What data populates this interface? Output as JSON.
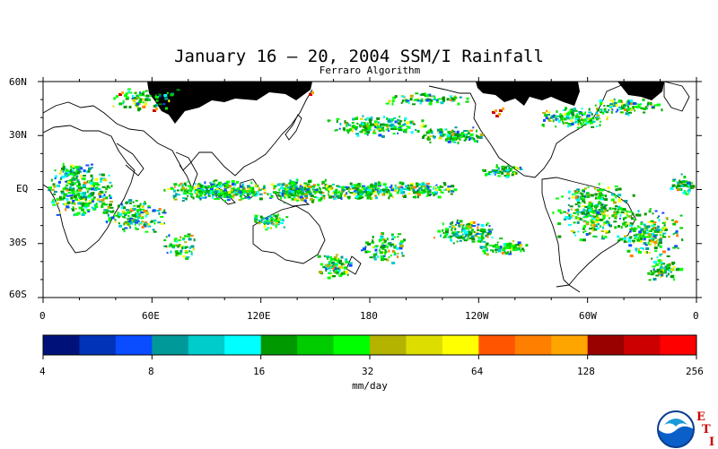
{
  "title": "January 16 – 20, 2004 SSM/I Rainfall",
  "subtitle": "Ferraro Algorithm",
  "lat_labels": [
    "60N",
    "30N",
    "EQ",
    "30S",
    "60S"
  ],
  "lon_labels": [
    "0",
    "60E",
    "120E",
    "180",
    "120W",
    "60W",
    "0"
  ],
  "colorbar": {
    "colors": [
      "#00127a",
      "#0033b8",
      "#0a4cff",
      "#00999a",
      "#00cccc",
      "#00ffff",
      "#009900",
      "#00cc00",
      "#00ff00",
      "#b3b300",
      "#dddd00",
      "#ffff00",
      "#ff5500",
      "#ff7f00",
      "#ffa500",
      "#990000",
      "#cc0000",
      "#ff0000"
    ],
    "tick_labels": [
      "4",
      "8",
      "16",
      "32",
      "64",
      "128",
      "256"
    ],
    "units": "mm/day"
  },
  "logo": {
    "name": "NOAA",
    "letters": [
      "E",
      "T",
      "I"
    ]
  }
}
